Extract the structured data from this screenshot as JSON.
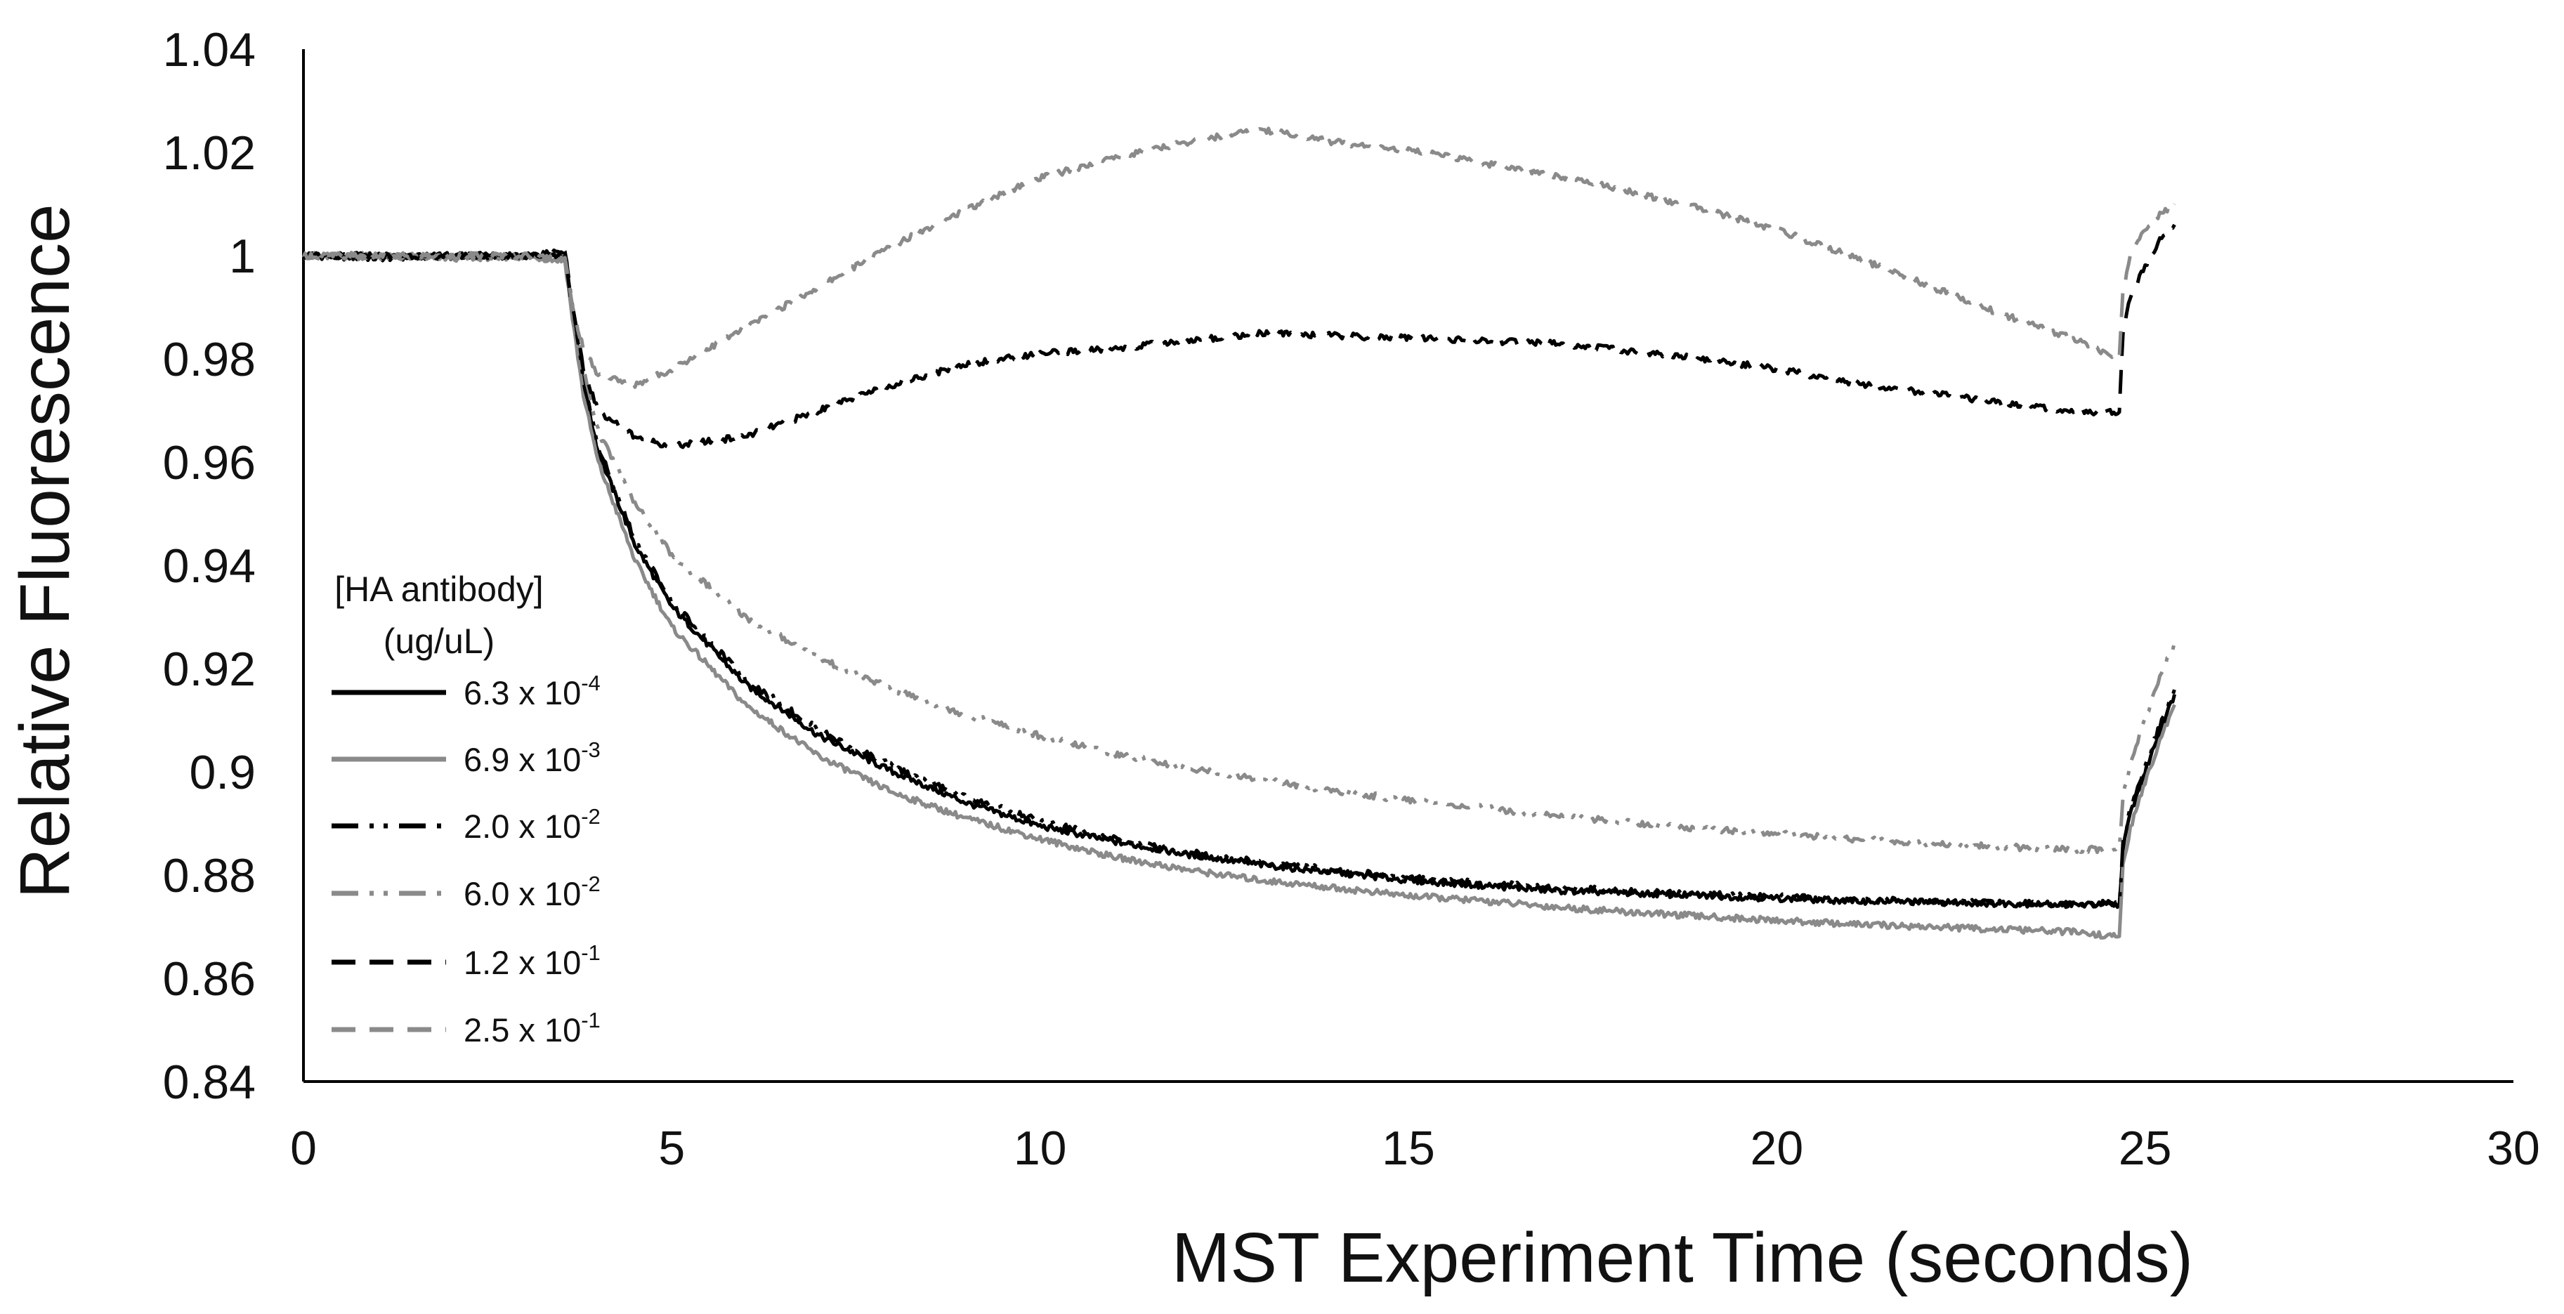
{
  "chart_data": {
    "type": "line",
    "title": "",
    "xlabel": "MST Experiment Time (seconds)",
    "ylabel": "Relative Fluorescence",
    "xlim": [
      0,
      30
    ],
    "ylim": [
      0.84,
      1.04
    ],
    "xticks": [
      0,
      5,
      10,
      15,
      20,
      25,
      30
    ],
    "xtick_labels": [
      "0",
      "5",
      "10",
      "15",
      "20",
      "25",
      "30"
    ],
    "yticks": [
      0.84,
      0.86,
      0.88,
      0.9,
      0.92,
      0.94,
      0.96,
      0.98,
      1.0,
      1.02,
      1.04
    ],
    "ytick_labels": [
      "0.84",
      "0.86",
      "0.88",
      "0.9",
      "0.92",
      "0.94",
      "0.96",
      "0.98",
      "1",
      "1.02",
      "1.04"
    ],
    "grid": false,
    "legend_title": [
      "[HA antibody]",
      "(ug/uL)"
    ],
    "legend_position": "left",
    "series": [
      {
        "name": "6.3 x 10-4",
        "label_base": "6.3 x 10",
        "label_exp": "-4",
        "color": "#000000",
        "dash": "solid",
        "x": [
          0,
          1,
          2,
          3,
          3.55,
          3.65,
          3.8,
          4,
          4.5,
          5,
          6,
          7,
          8,
          9,
          10,
          11,
          12,
          13,
          14,
          15,
          16,
          17,
          18,
          19,
          20,
          21,
          22,
          23,
          24,
          24.65,
          24.7,
          24.8,
          25,
          25.2,
          25.4
        ],
        "y": [
          1.0,
          0.9995,
          1.0,
          0.9998,
          1.001,
          0.99,
          0.975,
          0.962,
          0.944,
          0.932,
          0.917,
          0.907,
          0.9,
          0.894,
          0.8895,
          0.8865,
          0.884,
          0.882,
          0.8805,
          0.879,
          0.878,
          0.877,
          0.8765,
          0.876,
          0.8755,
          0.875,
          0.8748,
          0.8745,
          0.8743,
          0.8742,
          0.885,
          0.892,
          0.9,
          0.908,
          0.915
        ]
      },
      {
        "name": "6.9 x 10-3",
        "label_base": "6.9 x 10",
        "label_exp": "-3",
        "color": "#8a8a8a",
        "dash": "solid",
        "x": [
          0,
          1,
          2,
          3,
          3.55,
          3.65,
          3.8,
          4,
          4.5,
          5,
          6,
          7,
          8,
          9,
          10,
          11,
          12,
          13,
          14,
          15,
          16,
          17,
          18,
          19,
          20,
          21,
          22,
          23,
          24,
          24.65,
          24.7,
          24.8,
          25,
          25.2,
          25.4
        ],
        "y": [
          1.0,
          0.9998,
          0.9995,
          0.9998,
          0.999,
          0.988,
          0.973,
          0.96,
          0.941,
          0.928,
          0.913,
          0.903,
          0.896,
          0.891,
          0.887,
          0.8835,
          0.881,
          0.879,
          0.8775,
          0.876,
          0.875,
          0.8738,
          0.8728,
          0.872,
          0.8712,
          0.8705,
          0.87,
          0.8695,
          0.869,
          0.868,
          0.882,
          0.889,
          0.898,
          0.906,
          0.913
        ]
      },
      {
        "name": "2.0 x 10-2",
        "label_base": "2.0 x 10",
        "label_exp": "-2",
        "color": "#000000",
        "dash": "dash-dot-dot",
        "x": [
          0,
          1,
          2,
          3,
          3.55,
          3.65,
          3.8,
          4,
          4.5,
          5,
          6,
          7,
          8,
          9,
          10,
          11,
          12,
          13,
          14,
          15,
          16,
          17,
          18,
          19,
          20,
          21,
          22,
          23,
          24,
          24.65,
          24.7,
          24.8,
          25,
          25.2,
          25.4
        ],
        "y": [
          1.0,
          1.0,
          1.0,
          1.0,
          1.001,
          0.99,
          0.976,
          0.963,
          0.945,
          0.933,
          0.918,
          0.908,
          0.901,
          0.895,
          0.8905,
          0.887,
          0.8845,
          0.8825,
          0.881,
          0.8795,
          0.8785,
          0.8775,
          0.877,
          0.8763,
          0.8758,
          0.8752,
          0.875,
          0.8748,
          0.8745,
          0.8745,
          0.886,
          0.893,
          0.901,
          0.909,
          0.916
        ]
      },
      {
        "name": "6.0 x 10-2",
        "label_base": "6.0 x 10",
        "label_exp": "-2",
        "color": "#8a8a8a",
        "dash": "dash-dot-dot",
        "x": [
          0,
          1,
          2,
          3,
          3.55,
          3.65,
          3.8,
          4,
          4.5,
          5,
          6,
          7,
          8,
          9,
          10,
          11,
          12,
          13,
          14,
          15,
          16,
          17,
          18,
          19,
          20,
          21,
          22,
          23,
          24,
          24.65,
          24.7,
          24.8,
          25,
          25.2,
          25.4
        ],
        "y": [
          1.0,
          1.0,
          0.9998,
          0.9998,
          1.0,
          0.99,
          0.978,
          0.966,
          0.952,
          0.942,
          0.93,
          0.922,
          0.916,
          0.911,
          0.907,
          0.9035,
          0.9008,
          0.8985,
          0.8963,
          0.8945,
          0.893,
          0.8915,
          0.8902,
          0.889,
          0.888,
          0.887,
          0.8862,
          0.8855,
          0.885,
          0.885,
          0.895,
          0.902,
          0.91,
          0.918,
          0.925
        ]
      },
      {
        "name": "1.2 x 10-1",
        "label_base": "1.2 x 10",
        "label_exp": "-1",
        "color": "#000000",
        "dash": "dashed",
        "x": [
          0,
          1,
          2,
          3,
          3.55,
          3.65,
          3.8,
          4,
          4.5,
          5,
          5.5,
          6,
          7,
          8,
          9,
          10,
          11,
          12,
          13,
          14,
          15,
          16,
          17,
          18,
          19,
          20,
          21,
          22,
          23,
          24,
          24.65,
          24.7,
          24.8,
          25,
          25.2,
          25.4
        ],
        "y": [
          1.0,
          1.0,
          1.0,
          1.0,
          1.0,
          0.99,
          0.978,
          0.97,
          0.965,
          0.963,
          0.964,
          0.965,
          0.97,
          0.975,
          0.979,
          0.981,
          0.982,
          0.9835,
          0.985,
          0.9845,
          0.984,
          0.9835,
          0.983,
          0.9815,
          0.98,
          0.978,
          0.9755,
          0.9735,
          0.9715,
          0.97,
          0.9695,
          0.985,
          0.992,
          0.998,
          1.003,
          1.006
        ]
      },
      {
        "name": "2.5 x 10-1",
        "label_base": "2.5 x 10",
        "label_exp": "-1",
        "color": "#8a8a8a",
        "dash": "dashed",
        "x": [
          0,
          1,
          2,
          3,
          3.55,
          3.65,
          3.8,
          4,
          4.5,
          5,
          6,
          7,
          8,
          9,
          10,
          11,
          12,
          13,
          14,
          15,
          16,
          17,
          18,
          19,
          20,
          21,
          22,
          23,
          24,
          24.65,
          24.7,
          24.8,
          25,
          25.2,
          25.4
        ],
        "y": [
          1.0,
          1.0,
          1.0,
          1.0,
          0.9995,
          0.99,
          0.982,
          0.977,
          0.975,
          0.978,
          0.986,
          0.994,
          1.002,
          1.009,
          1.015,
          1.019,
          1.022,
          1.0245,
          1.022,
          1.0205,
          1.018,
          1.0155,
          1.0125,
          1.009,
          1.005,
          1.0,
          0.9945,
          0.989,
          0.984,
          0.98,
          0.993,
          1.0,
          1.005,
          1.008,
          1.01
        ]
      }
    ]
  }
}
